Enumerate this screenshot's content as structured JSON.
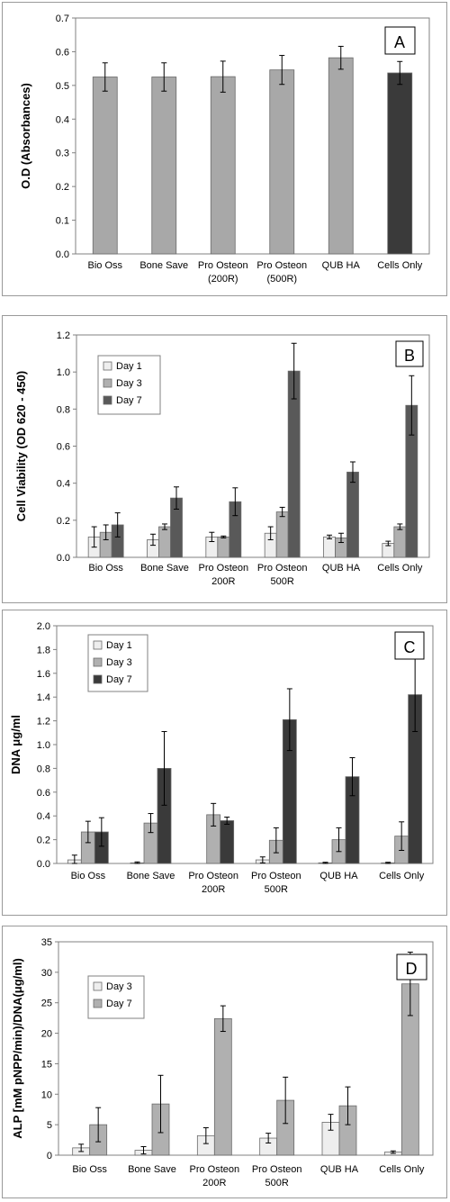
{
  "colors": {
    "light": "#eeeeee",
    "mid": "#b0b0b0",
    "dark": "#3a3a3a",
    "darker": "#595959",
    "solo": "#a8a8a8"
  },
  "chart_data": [
    {
      "type": "bar",
      "panel_label": "A",
      "ylabel": "O.D (Absorbances)",
      "categories": [
        "Bio Oss",
        "Bone Save",
        "Pro Osteon\n(200R)",
        "Pro Osteon\n(500R)",
        "QUB HA",
        "Cells Only"
      ],
      "ylim": [
        0,
        0.7
      ],
      "yticks": [
        "0.0",
        "0.1",
        "0.2",
        "0.3",
        "0.4",
        "0.5",
        "0.6",
        "0.7"
      ],
      "legend": false,
      "series": [
        {
          "values": [
            0.525,
            0.525,
            0.526,
            0.546,
            0.582,
            0.537
          ],
          "errors": [
            0.042,
            0.042,
            0.046,
            0.043,
            0.034,
            0.034
          ],
          "colors": [
            "#a8a8a8",
            "#a8a8a8",
            "#a8a8a8",
            "#a8a8a8",
            "#a8a8a8",
            "#3a3a3a"
          ]
        }
      ]
    },
    {
      "type": "bar",
      "panel_label": "B",
      "ylabel": "Cell Viability (OD 620 - 450)",
      "categories": [
        "Bio Oss",
        "Bone Save",
        "Pro Osteon\n200R",
        "Pro Osteon\n500R",
        "QUB HA",
        "Cells Only"
      ],
      "ylim": [
        0,
        1.2
      ],
      "yticks": [
        "0.0",
        "0.2",
        "0.4",
        "0.6",
        "0.8",
        "1.0",
        "1.2"
      ],
      "legend": true,
      "series": [
        {
          "name": "Day 1",
          "color": "#eeeeee",
          "values": [
            0.11,
            0.095,
            0.11,
            0.13,
            0.11,
            0.075
          ],
          "errors": [
            0.055,
            0.03,
            0.025,
            0.035,
            0.01,
            0.012
          ]
        },
        {
          "name": "Day 3",
          "color": "#b0b0b0",
          "values": [
            0.135,
            0.165,
            0.11,
            0.245,
            0.105,
            0.165
          ],
          "errors": [
            0.04,
            0.015,
            0.005,
            0.025,
            0.025,
            0.015
          ]
        },
        {
          "name": "Day 7",
          "color": "#595959",
          "values": [
            0.175,
            0.32,
            0.3,
            1.005,
            0.46,
            0.82
          ],
          "errors": [
            0.065,
            0.06,
            0.075,
            0.15,
            0.055,
            0.16
          ]
        }
      ]
    },
    {
      "type": "bar",
      "panel_label": "C",
      "ylabel": "DNA μg/ml",
      "categories": [
        "Bio Oss",
        "Bone Save",
        "Pro Osteon\n200R",
        "Pro Osteon\n500R",
        "QUB HA",
        "Cells Only"
      ],
      "ylim": [
        0,
        2.0
      ],
      "yticks": [
        "0.0",
        "0.2",
        "0.4",
        "0.6",
        "0.8",
        "1.0",
        "1.2",
        "1.4",
        "1.6",
        "1.8",
        "2.0"
      ],
      "legend": true,
      "series": [
        {
          "name": "Day 1",
          "color": "#eeeeee",
          "values": [
            0.03,
            0.005,
            0.0,
            0.03,
            0.005,
            0.005
          ],
          "errors": [
            0.04,
            0.008,
            0.0,
            0.025,
            0.005,
            0.005
          ]
        },
        {
          "name": "Day 3",
          "color": "#b0b0b0",
          "values": [
            0.265,
            0.34,
            0.41,
            0.195,
            0.2,
            0.23
          ],
          "errors": [
            0.09,
            0.08,
            0.095,
            0.105,
            0.1,
            0.12
          ]
        },
        {
          "name": "Day 7",
          "color": "#3a3a3a",
          "values": [
            0.265,
            0.8,
            0.36,
            1.21,
            0.73,
            1.42
          ],
          "errors": [
            0.12,
            0.31,
            0.03,
            0.26,
            0.16,
            0.31
          ]
        }
      ]
    },
    {
      "type": "bar",
      "panel_label": "D",
      "ylabel": "ALP [mM pNPP/min)/DNA(μg/ml)",
      "categories": [
        "Bio Oss",
        "Bone Save",
        "Pro Osteon\n200R",
        "Pro Osteon\n500R",
        "QUB HA",
        "Cells Only"
      ],
      "ylim": [
        0,
        35
      ],
      "yticks": [
        "0",
        "5",
        "10",
        "15",
        "20",
        "25",
        "30",
        "35"
      ],
      "legend": true,
      "series": [
        {
          "name": "Day 3",
          "color": "#eeeeee",
          "values": [
            1.2,
            0.8,
            3.2,
            2.8,
            5.4,
            0.5
          ],
          "errors": [
            0.6,
            0.6,
            1.3,
            0.8,
            1.3,
            0.2
          ]
        },
        {
          "name": "Day 7",
          "color": "#b0b0b0",
          "values": [
            5.0,
            8.4,
            22.4,
            9.0,
            8.1,
            28.1
          ],
          "errors": [
            2.8,
            4.7,
            2.1,
            3.8,
            3.1,
            5.2
          ]
        }
      ]
    }
  ]
}
